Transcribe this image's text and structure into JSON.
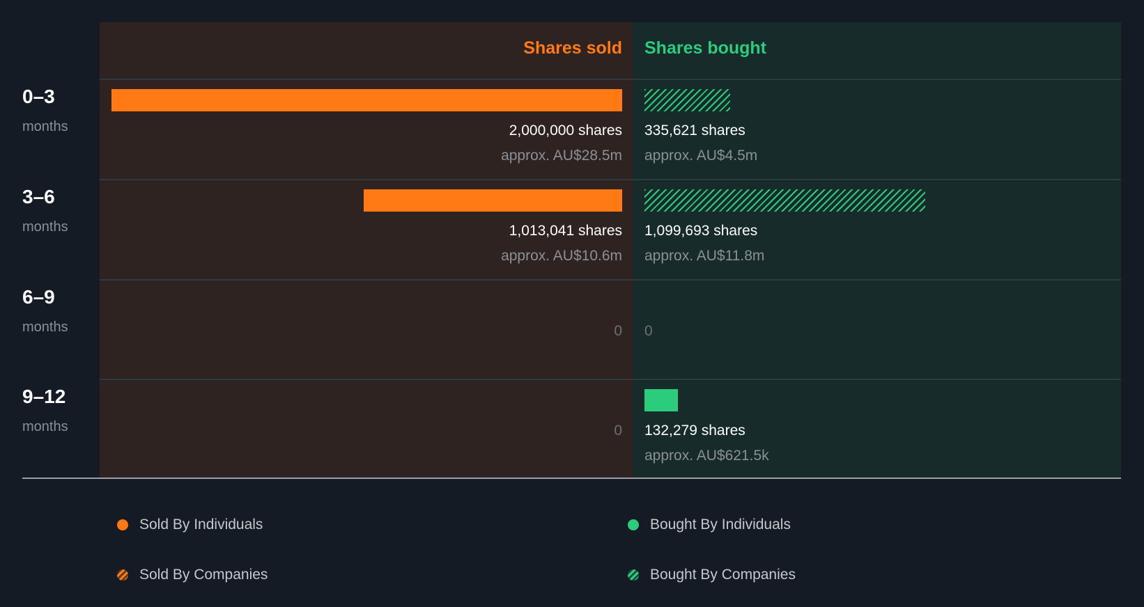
{
  "chart_data": {
    "type": "bar",
    "orientation": "horizontal-diverging",
    "headers": {
      "sold": "Shares sold",
      "bought": "Shares bought"
    },
    "max_value": 2000000,
    "rows": [
      {
        "period": "0–3",
        "unit": "months",
        "sold": {
          "value": 2000000,
          "label": "2,000,000 shares",
          "approx": "approx. AU$28.5m",
          "type": "individuals"
        },
        "bought": {
          "value": 335621,
          "label": "335,621 shares",
          "approx": "approx. AU$4.5m",
          "type": "companies"
        }
      },
      {
        "period": "3–6",
        "unit": "months",
        "sold": {
          "value": 1013041,
          "label": "1,013,041 shares",
          "approx": "approx. AU$10.6m",
          "type": "individuals"
        },
        "bought": {
          "value": 1099693,
          "label": "1,099,693 shares",
          "approx": "approx. AU$11.8m",
          "type": "companies"
        }
      },
      {
        "period": "6–9",
        "unit": "months",
        "sold": {
          "value": 0,
          "label": "0"
        },
        "bought": {
          "value": 0,
          "label": "0"
        }
      },
      {
        "period": "9–12",
        "unit": "months",
        "sold": {
          "value": 0,
          "label": "0"
        },
        "bought": {
          "value": 132279,
          "label": "132,279 shares",
          "approx": "approx. AU$621.5k",
          "type": "individuals"
        }
      }
    ],
    "legend": [
      "Sold By Individuals",
      "Bought By Individuals",
      "Sold By Companies",
      "Bought By Companies"
    ],
    "colors": {
      "sold": "#ff7a14",
      "bought": "#2ccc7d"
    }
  }
}
